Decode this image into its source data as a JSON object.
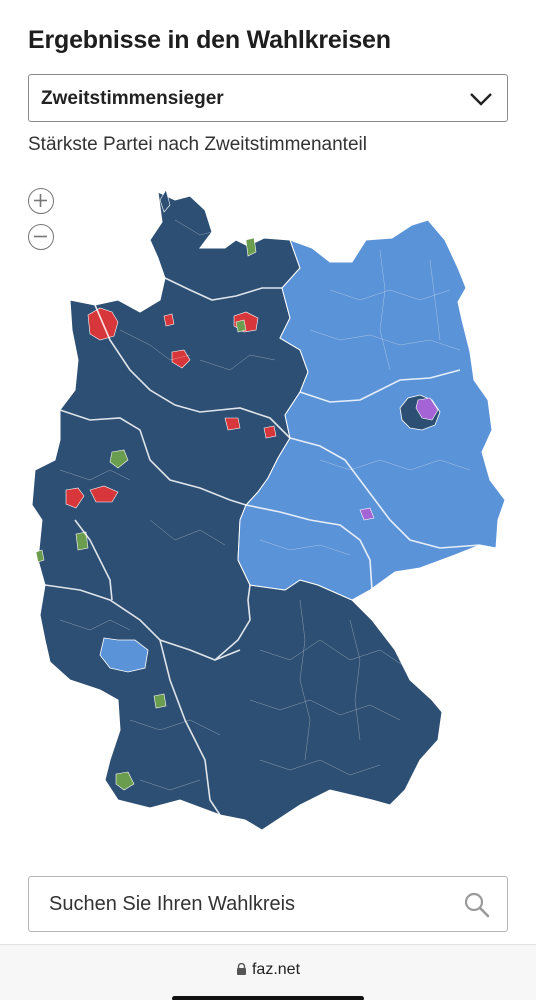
{
  "header": {
    "title": "Ergebnisse in den Wahlkreisen"
  },
  "view_select": {
    "value": "Zweitstimmensieger"
  },
  "subtitle": "Stärkste Partei nach Zweitstimmenanteil",
  "map": {
    "colors": {
      "cdu_csu": "#2d4f73",
      "afd": "#5b93d8",
      "spd": "#d7373a",
      "gruene": "#6a9d4e",
      "linke": "#a564d6",
      "border": "#ffffff"
    },
    "icons": {
      "zoom_in": "plus-circle-icon",
      "zoom_out": "minus-circle-icon"
    }
  },
  "search": {
    "placeholder": "Suchen Sie Ihren Wahlkreis",
    "icon": "search-icon"
  },
  "browser": {
    "url": "faz.net",
    "lock_icon": "lock-icon"
  }
}
